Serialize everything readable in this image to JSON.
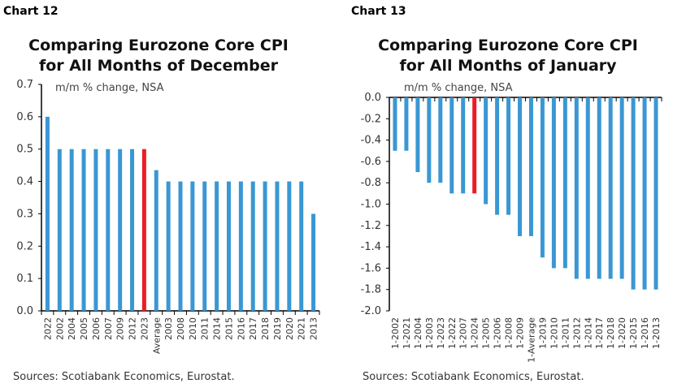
{
  "colors": {
    "bar": "#3a97d3",
    "highlight": "#ec1c24",
    "axis": "#000000"
  },
  "chart_data": [
    {
      "type": "bar",
      "label": "Chart 12",
      "title_line1": "Comparing Eurozone Core CPI",
      "title_line2": "for All Months of December",
      "unit_note": "m/m % change, NSA",
      "source": "Sources: Scotiabank Economics, Eurostat.",
      "ylim": [
        0,
        0.7
      ],
      "yticks": [
        "0.0",
        "0.1",
        "0.2",
        "0.3",
        "0.4",
        "0.5",
        "0.6",
        "0.7"
      ],
      "grid": false,
      "highlight": "2023",
      "categories": [
        "2022",
        "2002",
        "2004",
        "2005",
        "2006",
        "2007",
        "2009",
        "2012",
        "2023",
        "Average",
        "2003",
        "2008",
        "2010",
        "2011",
        "2014",
        "2015",
        "2016",
        "2017",
        "2018",
        "2019",
        "2020",
        "2021",
        "2013"
      ],
      "values": [
        0.6,
        0.5,
        0.5,
        0.5,
        0.5,
        0.5,
        0.5,
        0.5,
        0.5,
        0.435,
        0.4,
        0.4,
        0.4,
        0.4,
        0.4,
        0.4,
        0.4,
        0.4,
        0.4,
        0.4,
        0.4,
        0.4,
        0.3
      ]
    },
    {
      "type": "bar",
      "label": "Chart 13",
      "title_line1": "Comparing Eurozone Core CPI",
      "title_line2": "for All Months of January",
      "unit_note": "m/m % change, NSA",
      "source": "Sources: Scotiabank Economics, Eurostat.",
      "ylim": [
        -2.0,
        0.0
      ],
      "yticks": [
        "-2.0",
        "-1.8",
        "-1.6",
        "-1.4",
        "-1.2",
        "-1.0",
        "-0.8",
        "-0.6",
        "-0.4",
        "-0.2",
        "0.0"
      ],
      "grid": false,
      "highlight": "1-2024",
      "categories": [
        "1-2002",
        "1-2021",
        "1-2004",
        "1-2003",
        "1-2023",
        "1-2022",
        "1-2007",
        "1-2024",
        "1-2005",
        "1-2006",
        "1-2008",
        "1-2009",
        "1-Average",
        "1-2019",
        "1-2010",
        "1-2011",
        "1-2012",
        "1-2014",
        "1-2017",
        "1-2018",
        "1-2020",
        "1-2015",
        "1-2016",
        "1-2013"
      ],
      "values": [
        -0.5,
        -0.5,
        -0.7,
        -0.8,
        -0.8,
        -0.9,
        -0.9,
        -0.9,
        -1.0,
        -1.1,
        -1.1,
        -1.3,
        -1.3,
        -1.5,
        -1.6,
        -1.6,
        -1.7,
        -1.7,
        -1.7,
        -1.7,
        -1.7,
        -1.8,
        -1.8,
        -1.8
      ]
    }
  ]
}
